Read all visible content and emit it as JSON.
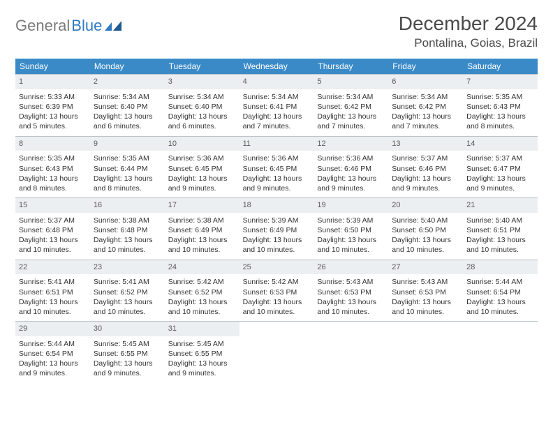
{
  "brand": {
    "word1": "General",
    "word2": "Blue"
  },
  "title": "December 2024",
  "location": "Pontalina, Goias, Brazil",
  "colors": {
    "header_bg": "#3a8ac8",
    "header_fg": "#ffffff",
    "daynum_bg": "#eceff1",
    "border": "#bcc3c9",
    "logo_gray": "#7a7a7a",
    "logo_blue": "#2f7ac0"
  },
  "dow": [
    "Sunday",
    "Monday",
    "Tuesday",
    "Wednesday",
    "Thursday",
    "Friday",
    "Saturday"
  ],
  "days": [
    {
      "n": 1,
      "sunrise": "5:33 AM",
      "sunset": "6:39 PM",
      "daylight": "13 hours and 5 minutes."
    },
    {
      "n": 2,
      "sunrise": "5:34 AM",
      "sunset": "6:40 PM",
      "daylight": "13 hours and 6 minutes."
    },
    {
      "n": 3,
      "sunrise": "5:34 AM",
      "sunset": "6:40 PM",
      "daylight": "13 hours and 6 minutes."
    },
    {
      "n": 4,
      "sunrise": "5:34 AM",
      "sunset": "6:41 PM",
      "daylight": "13 hours and 7 minutes."
    },
    {
      "n": 5,
      "sunrise": "5:34 AM",
      "sunset": "6:42 PM",
      "daylight": "13 hours and 7 minutes."
    },
    {
      "n": 6,
      "sunrise": "5:34 AM",
      "sunset": "6:42 PM",
      "daylight": "13 hours and 7 minutes."
    },
    {
      "n": 7,
      "sunrise": "5:35 AM",
      "sunset": "6:43 PM",
      "daylight": "13 hours and 8 minutes."
    },
    {
      "n": 8,
      "sunrise": "5:35 AM",
      "sunset": "6:43 PM",
      "daylight": "13 hours and 8 minutes."
    },
    {
      "n": 9,
      "sunrise": "5:35 AM",
      "sunset": "6:44 PM",
      "daylight": "13 hours and 8 minutes."
    },
    {
      "n": 10,
      "sunrise": "5:36 AM",
      "sunset": "6:45 PM",
      "daylight": "13 hours and 9 minutes."
    },
    {
      "n": 11,
      "sunrise": "5:36 AM",
      "sunset": "6:45 PM",
      "daylight": "13 hours and 9 minutes."
    },
    {
      "n": 12,
      "sunrise": "5:36 AM",
      "sunset": "6:46 PM",
      "daylight": "13 hours and 9 minutes."
    },
    {
      "n": 13,
      "sunrise": "5:37 AM",
      "sunset": "6:46 PM",
      "daylight": "13 hours and 9 minutes."
    },
    {
      "n": 14,
      "sunrise": "5:37 AM",
      "sunset": "6:47 PM",
      "daylight": "13 hours and 9 minutes."
    },
    {
      "n": 15,
      "sunrise": "5:37 AM",
      "sunset": "6:48 PM",
      "daylight": "13 hours and 10 minutes."
    },
    {
      "n": 16,
      "sunrise": "5:38 AM",
      "sunset": "6:48 PM",
      "daylight": "13 hours and 10 minutes."
    },
    {
      "n": 17,
      "sunrise": "5:38 AM",
      "sunset": "6:49 PM",
      "daylight": "13 hours and 10 minutes."
    },
    {
      "n": 18,
      "sunrise": "5:39 AM",
      "sunset": "6:49 PM",
      "daylight": "13 hours and 10 minutes."
    },
    {
      "n": 19,
      "sunrise": "5:39 AM",
      "sunset": "6:50 PM",
      "daylight": "13 hours and 10 minutes."
    },
    {
      "n": 20,
      "sunrise": "5:40 AM",
      "sunset": "6:50 PM",
      "daylight": "13 hours and 10 minutes."
    },
    {
      "n": 21,
      "sunrise": "5:40 AM",
      "sunset": "6:51 PM",
      "daylight": "13 hours and 10 minutes."
    },
    {
      "n": 22,
      "sunrise": "5:41 AM",
      "sunset": "6:51 PM",
      "daylight": "13 hours and 10 minutes."
    },
    {
      "n": 23,
      "sunrise": "5:41 AM",
      "sunset": "6:52 PM",
      "daylight": "13 hours and 10 minutes."
    },
    {
      "n": 24,
      "sunrise": "5:42 AM",
      "sunset": "6:52 PM",
      "daylight": "13 hours and 10 minutes."
    },
    {
      "n": 25,
      "sunrise": "5:42 AM",
      "sunset": "6:53 PM",
      "daylight": "13 hours and 10 minutes."
    },
    {
      "n": 26,
      "sunrise": "5:43 AM",
      "sunset": "6:53 PM",
      "daylight": "13 hours and 10 minutes."
    },
    {
      "n": 27,
      "sunrise": "5:43 AM",
      "sunset": "6:53 PM",
      "daylight": "13 hours and 10 minutes."
    },
    {
      "n": 28,
      "sunrise": "5:44 AM",
      "sunset": "6:54 PM",
      "daylight": "13 hours and 10 minutes."
    },
    {
      "n": 29,
      "sunrise": "5:44 AM",
      "sunset": "6:54 PM",
      "daylight": "13 hours and 9 minutes."
    },
    {
      "n": 30,
      "sunrise": "5:45 AM",
      "sunset": "6:55 PM",
      "daylight": "13 hours and 9 minutes."
    },
    {
      "n": 31,
      "sunrise": "5:45 AM",
      "sunset": "6:55 PM",
      "daylight": "13 hours and 9 minutes."
    }
  ],
  "labels": {
    "sunrise": "Sunrise:",
    "sunset": "Sunset:",
    "daylight": "Daylight:"
  },
  "first_dow_index": 0,
  "grid_cols": 7
}
